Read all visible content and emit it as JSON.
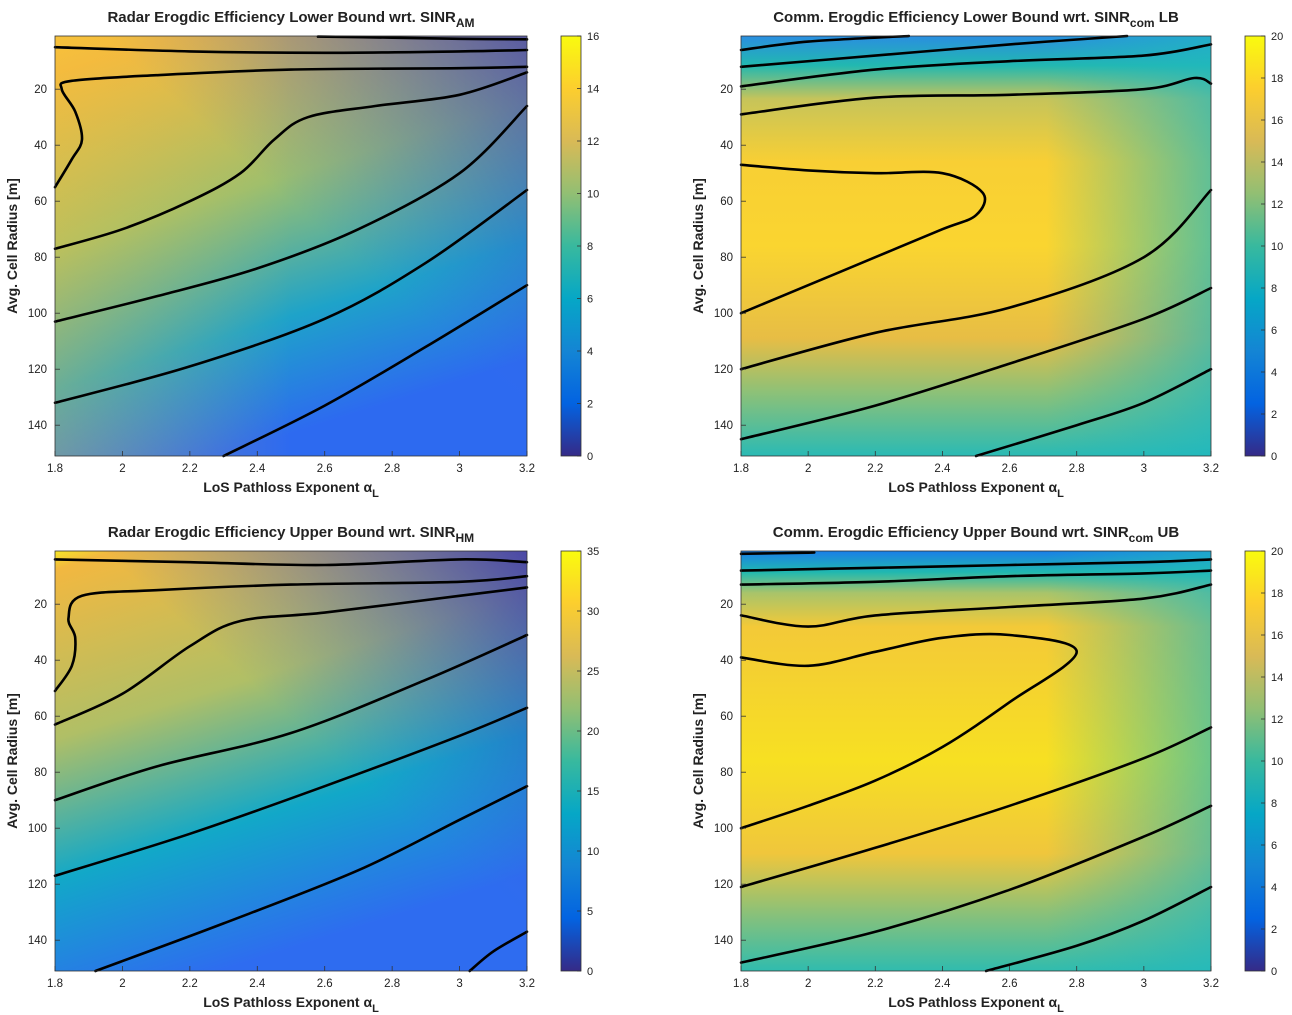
{
  "chart_data": [
    {
      "type": "heatmap",
      "title": "Radar Erogdic Efficiency Lower Bound wrt. SINR",
      "title_subscript": "AM",
      "title_suffix": "",
      "xlabel": "LoS Pathloss Exponent α",
      "xlabel_subscript": "L",
      "ylabel": "Avg. Cell Radius [m]",
      "xlim": [
        1.8,
        3.2
      ],
      "ylim": [
        1,
        151
      ],
      "y_reversed": true,
      "xticks": [
        "1.8",
        "2",
        "2.2",
        "2.4",
        "2.6",
        "2.8",
        "3",
        "3.2"
      ],
      "yticks": [
        "20",
        "40",
        "60",
        "80",
        "100",
        "120",
        "140"
      ],
      "colorbar": {
        "min": 0,
        "max": 16,
        "ticks": [
          "0",
          "2",
          "4",
          "6",
          "8",
          "10",
          "12",
          "14",
          "16"
        ]
      },
      "colormap": "parula",
      "contours": [
        [
          [
            2.58,
            1.2
          ],
          [
            2.8,
            1.6
          ],
          [
            3.0,
            2.0
          ],
          [
            3.2,
            2.2
          ]
        ],
        [
          [
            1.8,
            5
          ],
          [
            2.2,
            6.5
          ],
          [
            2.6,
            7
          ],
          [
            3.0,
            6.5
          ],
          [
            3.2,
            6
          ]
        ],
        [
          [
            1.8,
            55
          ],
          [
            1.85,
            45
          ],
          [
            1.88,
            38
          ],
          [
            1.86,
            28
          ],
          [
            1.82,
            20
          ],
          [
            1.85,
            17
          ],
          [
            2.1,
            15
          ],
          [
            2.5,
            13
          ],
          [
            3.0,
            12.5
          ],
          [
            3.2,
            12
          ]
        ],
        [
          [
            1.8,
            77
          ],
          [
            2.0,
            70
          ],
          [
            2.2,
            60
          ],
          [
            2.35,
            50
          ],
          [
            2.45,
            38
          ],
          [
            2.55,
            30
          ],
          [
            2.75,
            26
          ],
          [
            3.0,
            22
          ],
          [
            3.2,
            14
          ]
        ],
        [
          [
            1.8,
            103
          ],
          [
            2.1,
            94
          ],
          [
            2.4,
            84
          ],
          [
            2.7,
            70
          ],
          [
            3.0,
            50
          ],
          [
            3.2,
            26
          ]
        ],
        [
          [
            1.8,
            132
          ],
          [
            2.2,
            119
          ],
          [
            2.6,
            102
          ],
          [
            2.9,
            82
          ],
          [
            3.2,
            56
          ]
        ],
        [
          [
            2.3,
            151
          ],
          [
            2.6,
            133
          ],
          [
            2.9,
            112
          ],
          [
            3.2,
            90
          ]
        ]
      ]
    },
    {
      "type": "heatmap",
      "title": "Comm. Erogdic Efficiency Lower Bound wrt. SINR",
      "title_subscript": "com",
      "title_suffix": " LB",
      "xlabel": "LoS Pathloss Exponent α",
      "xlabel_subscript": "L",
      "ylabel": "Avg. Cell Radius [m]",
      "xlim": [
        1.8,
        3.2
      ],
      "ylim": [
        1,
        151
      ],
      "y_reversed": true,
      "xticks": [
        "1.8",
        "2",
        "2.2",
        "2.4",
        "2.6",
        "2.8",
        "3",
        "3.2"
      ],
      "yticks": [
        "20",
        "40",
        "60",
        "80",
        "100",
        "120",
        "140"
      ],
      "colorbar": {
        "min": 0,
        "max": 20,
        "ticks": [
          "0",
          "2",
          "4",
          "6",
          "8",
          "10",
          "12",
          "14",
          "16",
          "18",
          "20"
        ]
      },
      "colormap": "parula",
      "contours": [
        [
          [
            1.8,
            6
          ],
          [
            2.0,
            3
          ],
          [
            2.3,
            1
          ]
        ],
        [
          [
            1.8,
            12
          ],
          [
            2.2,
            8
          ],
          [
            2.6,
            4
          ],
          [
            2.95,
            1
          ]
        ],
        [
          [
            1.8,
            19
          ],
          [
            2.2,
            13
          ],
          [
            2.6,
            10
          ],
          [
            3.0,
            8
          ],
          [
            3.2,
            4
          ]
        ],
        [
          [
            1.8,
            29
          ],
          [
            2.2,
            23
          ],
          [
            2.6,
            22
          ],
          [
            3.0,
            20
          ],
          [
            3.15,
            16
          ],
          [
            3.2,
            18
          ]
        ],
        [
          [
            1.8,
            47
          ],
          [
            2.0,
            49
          ],
          [
            2.2,
            50
          ],
          [
            2.4,
            50
          ],
          [
            2.52,
            57
          ],
          [
            2.5,
            65
          ],
          [
            2.4,
            70
          ],
          [
            2.2,
            80
          ],
          [
            2.0,
            90
          ],
          [
            1.8,
            100
          ]
        ],
        [
          [
            1.8,
            120
          ],
          [
            2.2,
            107
          ],
          [
            2.6,
            98
          ],
          [
            3.0,
            80
          ],
          [
            3.2,
            56
          ]
        ],
        [
          [
            1.8,
            145
          ],
          [
            2.2,
            133
          ],
          [
            2.6,
            118
          ],
          [
            3.0,
            102
          ],
          [
            3.2,
            91
          ]
        ],
        [
          [
            2.5,
            151
          ],
          [
            2.8,
            140
          ],
          [
            3.0,
            132
          ],
          [
            3.2,
            120
          ]
        ]
      ]
    },
    {
      "type": "heatmap",
      "title": "Radar Erogdic Efficiency Upper Bound wrt. SINR",
      "title_subscript": "HM",
      "title_suffix": "",
      "xlabel": "LoS Pathloss Exponent α",
      "xlabel_subscript": "L",
      "ylabel": "Avg. Cell Radius [m]",
      "xlim": [
        1.8,
        3.2
      ],
      "ylim": [
        1,
        151
      ],
      "y_reversed": true,
      "xticks": [
        "1.8",
        "2",
        "2.2",
        "2.4",
        "2.6",
        "2.8",
        "3",
        "3.2"
      ],
      "yticks": [
        "20",
        "40",
        "60",
        "80",
        "100",
        "120",
        "140"
      ],
      "colorbar": {
        "min": 0,
        "max": 35,
        "ticks": [
          "0",
          "5",
          "10",
          "15",
          "20",
          "25",
          "30",
          "35"
        ]
      },
      "colormap": "parula",
      "contours": [
        [
          [
            1.8,
            4
          ],
          [
            2.2,
            5
          ],
          [
            2.6,
            6
          ],
          [
            3.0,
            4
          ],
          [
            3.2,
            5
          ]
        ],
        [
          [
            1.8,
            51
          ],
          [
            1.85,
            42
          ],
          [
            1.86,
            32
          ],
          [
            1.84,
            25
          ],
          [
            1.88,
            17
          ],
          [
            2.1,
            15
          ],
          [
            2.5,
            13
          ],
          [
            3.0,
            12
          ],
          [
            3.2,
            10
          ]
        ],
        [
          [
            1.8,
            63
          ],
          [
            2.0,
            52
          ],
          [
            2.2,
            35
          ],
          [
            2.35,
            26
          ],
          [
            2.6,
            23
          ],
          [
            3.0,
            17
          ],
          [
            3.2,
            14
          ]
        ],
        [
          [
            1.8,
            90
          ],
          [
            2.1,
            78
          ],
          [
            2.5,
            66
          ],
          [
            2.9,
            47
          ],
          [
            3.2,
            31
          ]
        ],
        [
          [
            1.8,
            117
          ],
          [
            2.2,
            102
          ],
          [
            2.6,
            85
          ],
          [
            3.0,
            67
          ],
          [
            3.2,
            57
          ]
        ],
        [
          [
            1.92,
            151
          ],
          [
            2.3,
            134
          ],
          [
            2.7,
            115
          ],
          [
            3.0,
            97
          ],
          [
            3.2,
            85
          ]
        ],
        [
          [
            3.03,
            151
          ],
          [
            3.1,
            144
          ],
          [
            3.2,
            137
          ]
        ]
      ]
    },
    {
      "type": "heatmap",
      "title": "Comm. Erogdic Efficiency Upper Bound wrt. SINR",
      "title_subscript": "com",
      "title_suffix": " UB",
      "xlabel": "LoS Pathloss Exponent α",
      "xlabel_subscript": "L",
      "ylabel": "Avg. Cell Radius [m]",
      "xlim": [
        1.8,
        3.2
      ],
      "ylim": [
        1,
        151
      ],
      "y_reversed": true,
      "xticks": [
        "1.8",
        "2",
        "2.2",
        "2.4",
        "2.6",
        "2.8",
        "3",
        "3.2"
      ],
      "yticks": [
        "20",
        "40",
        "60",
        "80",
        "100",
        "120",
        "140"
      ],
      "colorbar": {
        "min": 0,
        "max": 20,
        "ticks": [
          "0",
          "2",
          "4",
          "6",
          "8",
          "10",
          "12",
          "14",
          "16",
          "18",
          "20"
        ]
      },
      "colormap": "parula",
      "contours": [
        [
          [
            1.8,
            2
          ],
          [
            2.0,
            1.6
          ],
          [
            2.01,
            1.5
          ]
        ],
        [
          [
            1.8,
            8
          ],
          [
            2.2,
            7
          ],
          [
            2.6,
            6
          ],
          [
            3.0,
            5
          ],
          [
            3.2,
            4
          ]
        ],
        [
          [
            1.8,
            13
          ],
          [
            2.2,
            12
          ],
          [
            2.6,
            10
          ],
          [
            3.0,
            9
          ],
          [
            3.2,
            8
          ]
        ],
        [
          [
            1.8,
            24
          ],
          [
            2.0,
            28
          ],
          [
            2.2,
            24
          ],
          [
            2.6,
            21
          ],
          [
            3.0,
            18
          ],
          [
            3.2,
            13
          ]
        ],
        [
          [
            1.8,
            39
          ],
          [
            2.0,
            42
          ],
          [
            2.2,
            37
          ],
          [
            2.4,
            32
          ],
          [
            2.6,
            31
          ],
          [
            2.8,
            37
          ],
          [
            2.6,
            55
          ],
          [
            2.4,
            71
          ],
          [
            2.2,
            83
          ],
          [
            2.0,
            92
          ],
          [
            1.8,
            100
          ]
        ],
        [
          [
            1.8,
            121
          ],
          [
            2.2,
            107
          ],
          [
            2.6,
            92
          ],
          [
            3.0,
            75
          ],
          [
            3.2,
            64
          ]
        ],
        [
          [
            1.8,
            148
          ],
          [
            2.2,
            137
          ],
          [
            2.6,
            122
          ],
          [
            3.0,
            103
          ],
          [
            3.2,
            92
          ]
        ],
        [
          [
            2.53,
            151
          ],
          [
            2.8,
            142
          ],
          [
            3.0,
            133
          ],
          [
            3.2,
            121
          ]
        ]
      ]
    }
  ]
}
